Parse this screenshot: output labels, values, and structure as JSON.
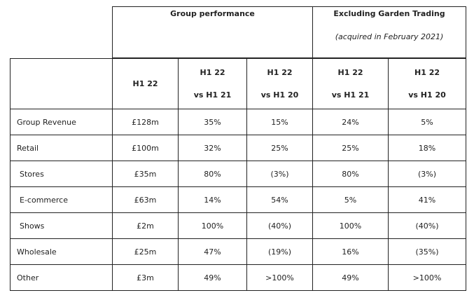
{
  "groups": {
    "group_performance": "Group performance",
    "excluding": "Excluding Garden Trading",
    "excluding_note": "(acquired in February 2021)"
  },
  "columns": [
    {
      "line1": "H1 22",
      "line2": ""
    },
    {
      "line1": "H1 22",
      "line2": "vs H1 21"
    },
    {
      "line1": "H1 22",
      "line2": "vs H1 20"
    },
    {
      "line1": "H1 22",
      "line2": "vs H1 21"
    },
    {
      "line1": "H1 22",
      "line2": "vs H1 20"
    }
  ],
  "rows": [
    {
      "label": "Group Revenue",
      "values": [
        "£128m",
        "35%",
        "15%",
        "24%",
        "5%"
      ]
    },
    {
      "label": "Retail",
      "values": [
        "£100m",
        "32%",
        "25%",
        "25%",
        "18%"
      ]
    },
    {
      "label": "Stores",
      "values": [
        "£35m",
        "80%",
        "(3%)",
        "80%",
        "(3%)"
      ]
    },
    {
      "label": "E-commerce",
      "values": [
        "£63m",
        "14%",
        "54%",
        "5%",
        "41%"
      ]
    },
    {
      "label": "Shows",
      "values": [
        "£2m",
        "100%",
        "(40%)",
        "100%",
        "(40%)"
      ]
    },
    {
      "label": "Wholesale",
      "values": [
        "£25m",
        "47%",
        "(19%)",
        "16%",
        "(35%)"
      ]
    },
    {
      "label": "Other",
      "values": [
        "£3m",
        "49%",
        ">100%",
        "49%",
        ">100%"
      ]
    }
  ]
}
